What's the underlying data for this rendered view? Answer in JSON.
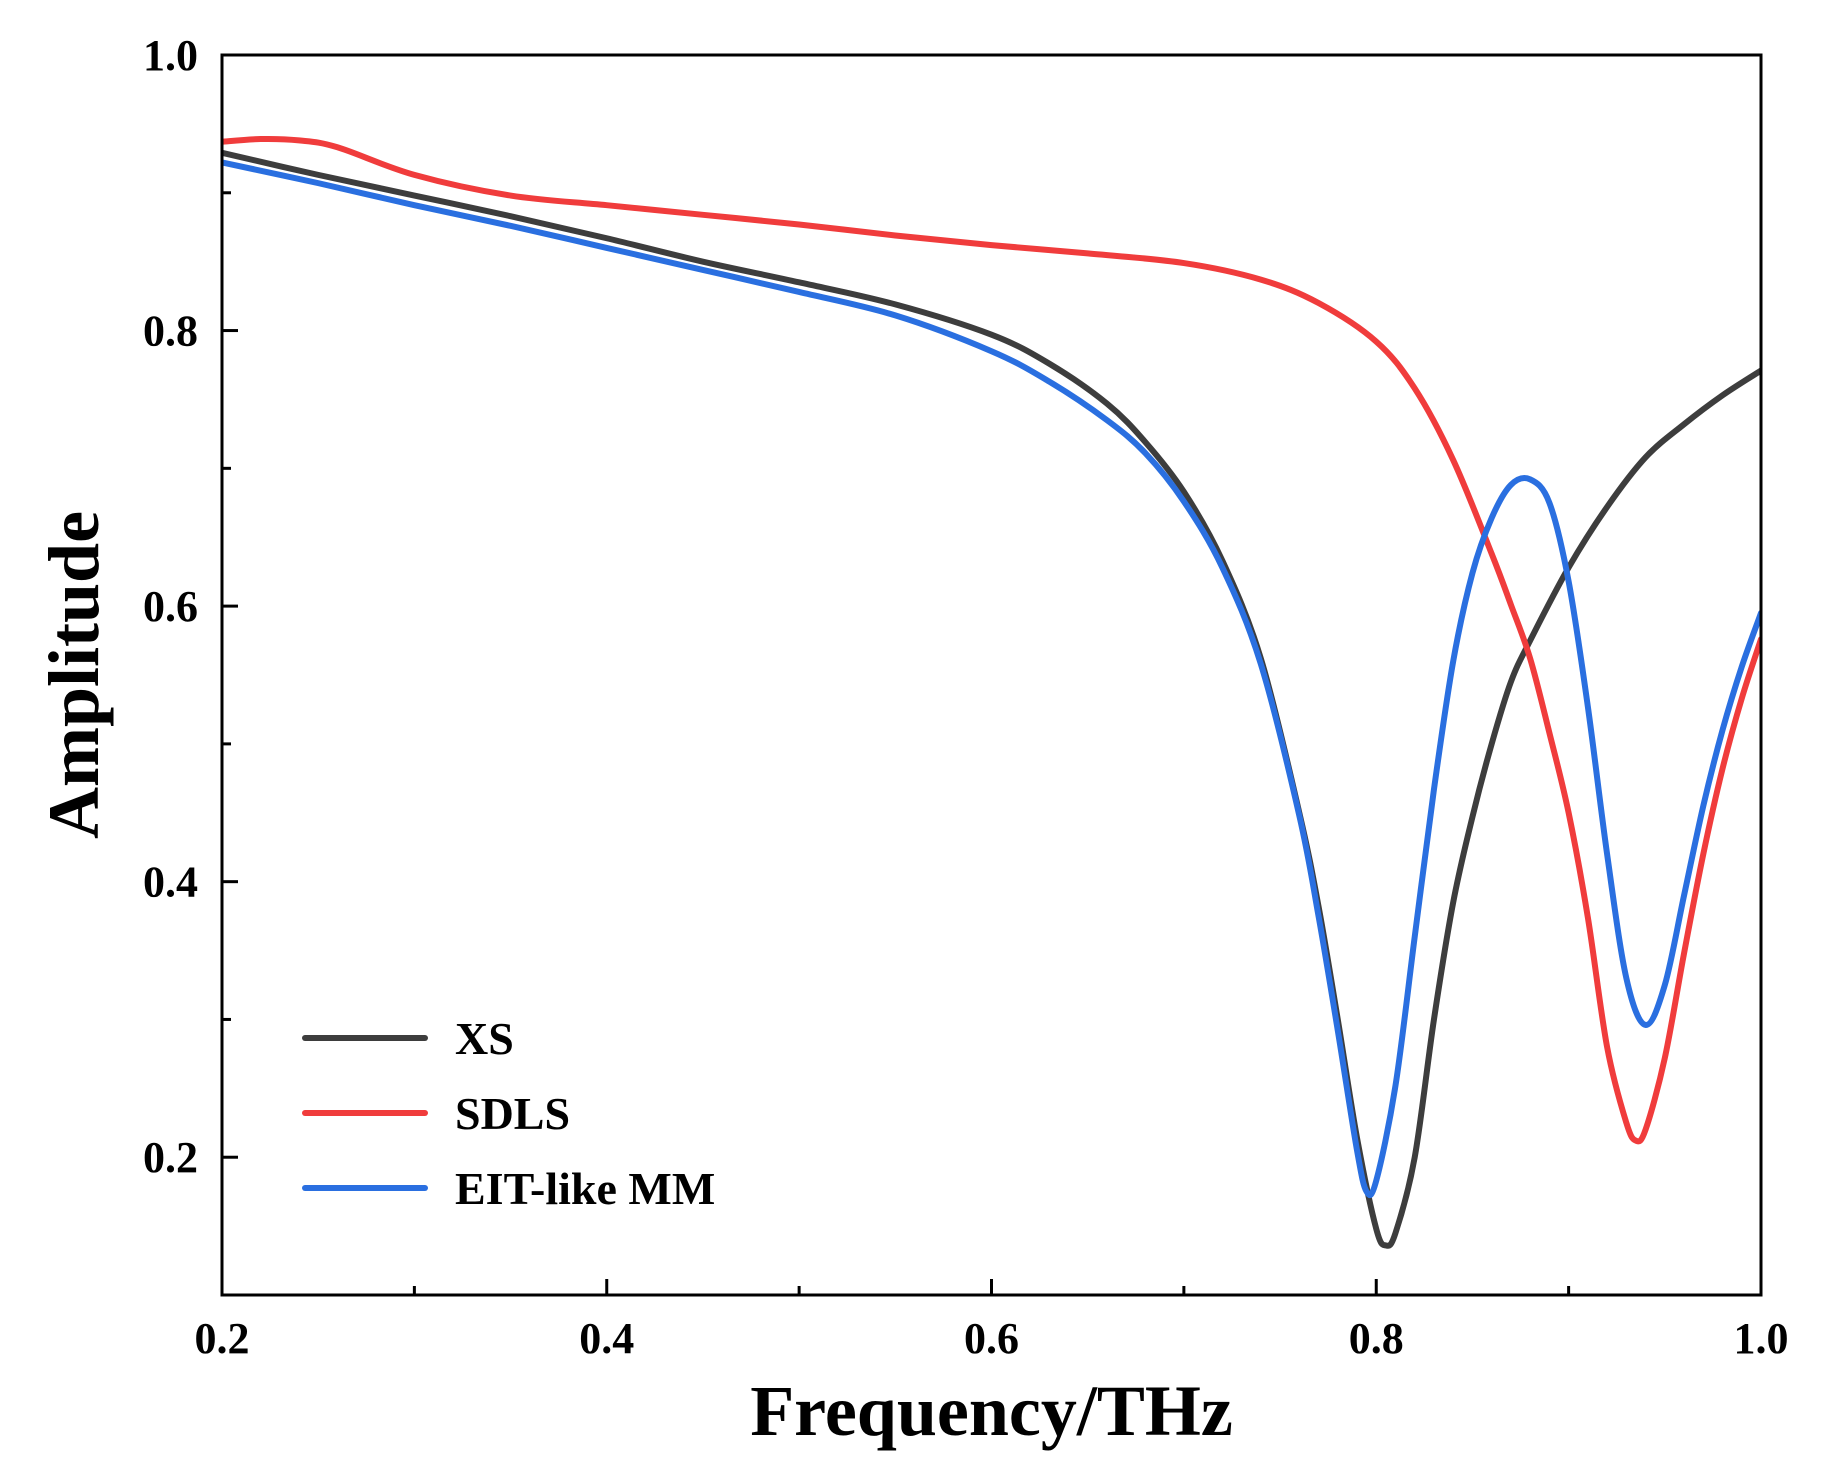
{
  "chart_data": {
    "type": "line",
    "title": "",
    "xlabel": "Frequency/THz",
    "ylabel": "Amplitude",
    "xlim": [
      0.2,
      1.0
    ],
    "ylim": [
      0.1,
      1.0
    ],
    "xticks": [
      0.2,
      0.4,
      0.6,
      0.8,
      1.0
    ],
    "xtick_labels": [
      "0.2",
      "0.4",
      "0.6",
      "0.8",
      "1.0"
    ],
    "xminor": [
      0.3,
      0.5,
      0.7,
      0.9
    ],
    "yticks": [
      0.2,
      0.4,
      0.6,
      0.8,
      1.0
    ],
    "ytick_labels": [
      "0.2",
      "0.4",
      "0.6",
      "0.8",
      "1.0"
    ],
    "yminor": [
      0.3,
      0.5,
      0.7,
      0.9
    ],
    "grid": false,
    "legend_position": "bottom-left",
    "series": [
      {
        "name": "XS",
        "color": "#3d3d3d",
        "x": [
          0.2,
          0.25,
          0.3,
          0.35,
          0.4,
          0.45,
          0.5,
          0.55,
          0.6,
          0.63,
          0.66,
          0.68,
          0.7,
          0.72,
          0.74,
          0.76,
          0.77,
          0.78,
          0.79,
          0.8,
          0.805,
          0.81,
          0.82,
          0.83,
          0.84,
          0.85,
          0.86,
          0.87,
          0.88,
          0.9,
          0.92,
          0.94,
          0.96,
          0.98,
          1.0
        ],
        "y": [
          0.929,
          0.913,
          0.898,
          0.883,
          0.867,
          0.85,
          0.835,
          0.819,
          0.797,
          0.776,
          0.747,
          0.719,
          0.683,
          0.633,
          0.562,
          0.45,
          0.382,
          0.3,
          0.214,
          0.148,
          0.136,
          0.145,
          0.2,
          0.3,
          0.385,
          0.447,
          0.5,
          0.545,
          0.575,
          0.628,
          0.672,
          0.708,
          0.732,
          0.753,
          0.771
        ]
      },
      {
        "name": "SDLS",
        "color": "#f03c3c",
        "x": [
          0.2,
          0.22,
          0.24,
          0.26,
          0.3,
          0.35,
          0.4,
          0.45,
          0.5,
          0.55,
          0.6,
          0.65,
          0.7,
          0.74,
          0.77,
          0.8,
          0.82,
          0.84,
          0.86,
          0.87,
          0.88,
          0.89,
          0.9,
          0.91,
          0.92,
          0.93,
          0.935,
          0.94,
          0.95,
          0.96,
          0.97,
          0.98,
          0.99,
          1.0
        ],
        "y": [
          0.937,
          0.939,
          0.938,
          0.933,
          0.913,
          0.898,
          0.891,
          0.884,
          0.877,
          0.869,
          0.862,
          0.856,
          0.849,
          0.837,
          0.82,
          0.792,
          0.758,
          0.706,
          0.638,
          0.601,
          0.562,
          0.508,
          0.45,
          0.374,
          0.28,
          0.225,
          0.212,
          0.22,
          0.272,
          0.348,
          0.42,
          0.482,
          0.533,
          0.576
        ]
      },
      {
        "name": "EIT-like MM",
        "color": "#2a6fe0",
        "x": [
          0.2,
          0.25,
          0.3,
          0.35,
          0.4,
          0.45,
          0.5,
          0.55,
          0.6,
          0.63,
          0.66,
          0.68,
          0.7,
          0.72,
          0.74,
          0.76,
          0.77,
          0.78,
          0.79,
          0.795,
          0.8,
          0.81,
          0.82,
          0.83,
          0.84,
          0.85,
          0.86,
          0.87,
          0.88,
          0.89,
          0.9,
          0.91,
          0.92,
          0.93,
          0.94,
          0.95,
          0.96,
          0.97,
          0.98,
          0.99,
          1.0
        ],
        "y": [
          0.922,
          0.907,
          0.891,
          0.876,
          0.86,
          0.844,
          0.828,
          0.811,
          0.785,
          0.763,
          0.735,
          0.711,
          0.676,
          0.628,
          0.558,
          0.448,
          0.375,
          0.292,
          0.205,
          0.175,
          0.183,
          0.252,
          0.36,
          0.467,
          0.56,
          0.624,
          0.664,
          0.688,
          0.692,
          0.675,
          0.618,
          0.527,
          0.42,
          0.33,
          0.296,
          0.325,
          0.39,
          0.455,
          0.51,
          0.556,
          0.595
        ]
      }
    ]
  }
}
